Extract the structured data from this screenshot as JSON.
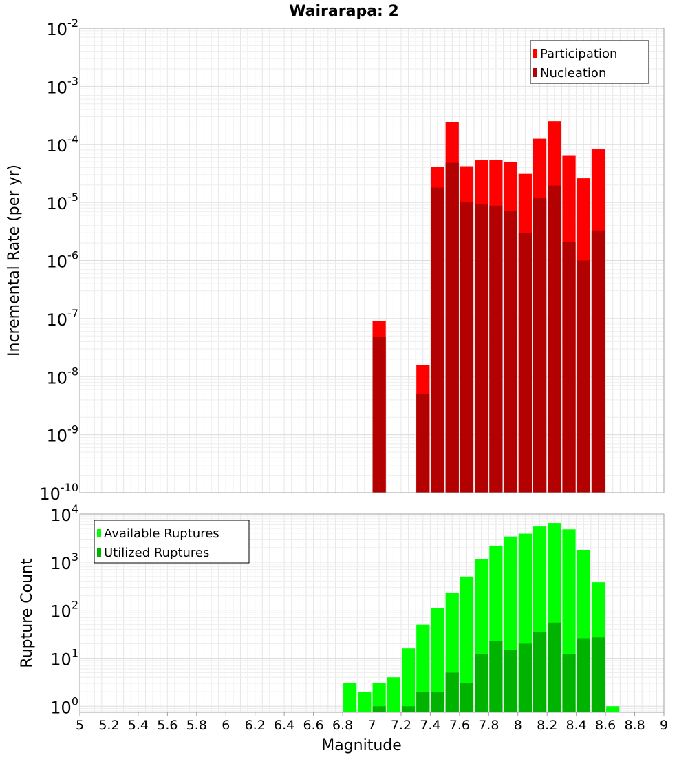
{
  "chart_data": [
    {
      "type": "bar",
      "title": "Wairarapa: 2",
      "xlabel": "",
      "ylabel": "Incremental Rate (per yr)",
      "y_scale": "log",
      "ylim": [
        1e-10,
        0.01
      ],
      "xlim": [
        5,
        9
      ],
      "bin_width": 0.1,
      "grid": true,
      "legend_position": "top-right",
      "y_ticks": [
        {
          "base": "10",
          "exp": "-10"
        },
        {
          "base": "10",
          "exp": "-9"
        },
        {
          "base": "10",
          "exp": "-8"
        },
        {
          "base": "10",
          "exp": "-7"
        },
        {
          "base": "10",
          "exp": "-6"
        },
        {
          "base": "10",
          "exp": "-5"
        },
        {
          "base": "10",
          "exp": "-4"
        },
        {
          "base": "10",
          "exp": "-3"
        },
        {
          "base": "10",
          "exp": "-2"
        }
      ],
      "x": [
        7.05,
        7.35,
        7.45,
        7.55,
        7.65,
        7.75,
        7.85,
        7.95,
        8.05,
        8.15,
        8.25,
        8.35,
        8.45,
        8.55
      ],
      "series": [
        {
          "name": "Participation",
          "color": "#ff0000",
          "values": [
            9e-08,
            1.6e-08,
            4.1e-05,
            0.00024,
            4.2e-05,
            5.3e-05,
            5.3e-05,
            5e-05,
            3.1e-05,
            0.000125,
            0.00025,
            6.5e-05,
            2.6e-05,
            8.2e-05
          ]
        },
        {
          "name": "Nucleation",
          "color": "#b30000",
          "values": [
            4.8e-08,
            5e-09,
            1.8e-05,
            4.8e-05,
            1e-05,
            9.5e-06,
            8.8e-06,
            7.2e-06,
            3e-06,
            1.18e-05,
            1.95e-05,
            2.1e-06,
            1e-06,
            3.3e-06
          ]
        }
      ]
    },
    {
      "type": "bar",
      "title": "",
      "xlabel": "Magnitude",
      "ylabel": "Rupture Count",
      "y_scale": "log",
      "ylim": [
        0.75,
        10000
      ],
      "xlim": [
        5,
        9
      ],
      "bin_width": 0.1,
      "grid": true,
      "legend_position": "top-left",
      "x_ticks": [
        "5",
        "5.2",
        "5.4",
        "5.6",
        "5.8",
        "6",
        "6.2",
        "6.4",
        "6.6",
        "6.8",
        "7",
        "7.2",
        "7.4",
        "7.6",
        "7.8",
        "8",
        "8.2",
        "8.4",
        "8.6",
        "8.8",
        "9"
      ],
      "y_ticks": [
        {
          "base": "10",
          "exp": "0"
        },
        {
          "base": "10",
          "exp": "1"
        },
        {
          "base": "10",
          "exp": "2"
        },
        {
          "base": "10",
          "exp": "3"
        },
        {
          "base": "10",
          "exp": "4"
        }
      ],
      "x": [
        6.85,
        6.95,
        7.05,
        7.15,
        7.25,
        7.35,
        7.45,
        7.55,
        7.65,
        7.75,
        7.85,
        7.95,
        8.05,
        8.15,
        8.25,
        8.35,
        8.45,
        8.55,
        8.65
      ],
      "series": [
        {
          "name": "Available Ruptures",
          "color": "#00ff00",
          "values": [
            3,
            2,
            3,
            4,
            16,
            50,
            110,
            230,
            500,
            1150,
            2200,
            3400,
            3900,
            5500,
            6500,
            4800,
            1800,
            380,
            1
          ]
        },
        {
          "name": "Utilized Ruptures",
          "color": "#00b300",
          "values": [
            0,
            0,
            1,
            0,
            1,
            2,
            2,
            5,
            3,
            12,
            23,
            15,
            20,
            35,
            55,
            12,
            26,
            27,
            0
          ]
        }
      ]
    }
  ]
}
